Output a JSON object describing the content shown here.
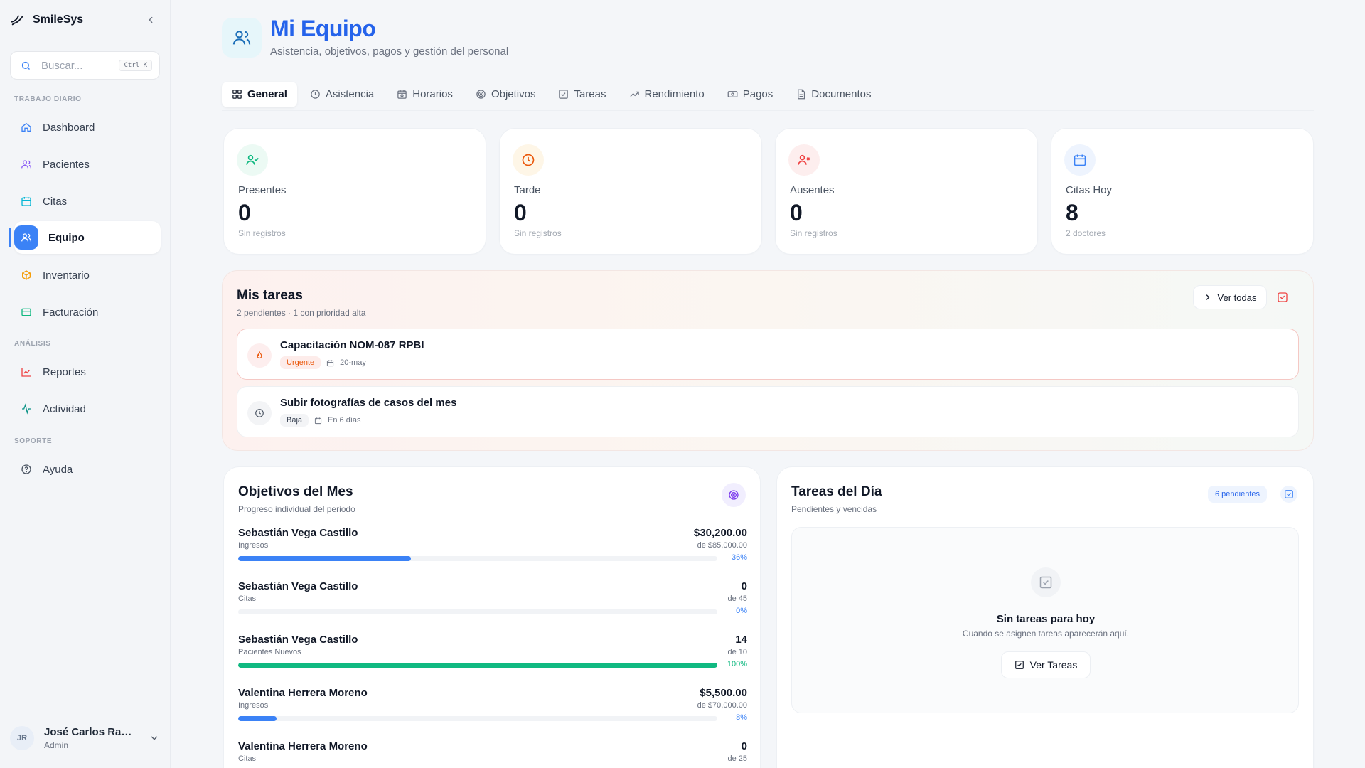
{
  "sidebar": {
    "brand": "SmileSys",
    "search_placeholder": "Buscar...",
    "search_shortcut": "Ctrl K",
    "sections": [
      {
        "label": "TRABAJO DIARIO"
      },
      {
        "label": "ANÁLISIS"
      },
      {
        "label": "SOPORTE"
      }
    ],
    "items": [
      {
        "label": "Dashboard",
        "icon": "home-icon"
      },
      {
        "label": "Pacientes",
        "icon": "users-icon"
      },
      {
        "label": "Citas",
        "icon": "calendar-icon"
      },
      {
        "label": "Equipo",
        "icon": "team-icon",
        "active": true
      },
      {
        "label": "Inventario",
        "icon": "box-icon"
      },
      {
        "label": "Facturación",
        "icon": "card-icon"
      },
      {
        "label": "Reportes",
        "icon": "chart-icon"
      },
      {
        "label": "Actividad",
        "icon": "activity-icon"
      },
      {
        "label": "Ayuda",
        "icon": "help-icon"
      }
    ],
    "user": {
      "initials": "JR",
      "name": "José Carlos Ramír...",
      "role": "Admin"
    }
  },
  "header": {
    "title": "Mi Equipo",
    "subtitle": "Asistencia, objetivos, pagos y gestión del personal"
  },
  "tabs": [
    {
      "label": "General",
      "active": true
    },
    {
      "label": "Asistencia"
    },
    {
      "label": "Horarios"
    },
    {
      "label": "Objetivos"
    },
    {
      "label": "Tareas"
    },
    {
      "label": "Rendimiento"
    },
    {
      "label": "Pagos"
    },
    {
      "label": "Documentos"
    }
  ],
  "stats": [
    {
      "label": "Presentes",
      "value": "0",
      "sub": "Sin registros",
      "color": "#10b981"
    },
    {
      "label": "Tarde",
      "value": "0",
      "sub": "Sin registros",
      "color": "#f59e0b"
    },
    {
      "label": "Ausentes",
      "value": "0",
      "sub": "Sin registros",
      "color": "#ef4444"
    },
    {
      "label": "Citas Hoy",
      "value": "8",
      "sub": "2 doctores",
      "color": "#3b82f6"
    }
  ],
  "my_tasks": {
    "title": "Mis tareas",
    "subtitle": "2 pendientes · 1 con prioridad alta",
    "see_all": "Ver todas",
    "items": [
      {
        "title": "Capacitación NOM-087 RPBI",
        "priority": "Urgente",
        "date": "20-may"
      },
      {
        "title": "Subir fotografías de casos del mes",
        "priority": "Baja",
        "date": "En 6 días"
      }
    ]
  },
  "goals": {
    "title": "Objetivos del Mes",
    "subtitle": "Progreso individual del periodo",
    "items": [
      {
        "name": "Sebastián Vega Castillo",
        "category": "Ingresos",
        "value": "$30,200.00",
        "target": "de $85,000.00",
        "percent": 36,
        "percent_label": "36%"
      },
      {
        "name": "Sebastián Vega Castillo",
        "category": "Citas",
        "value": "0",
        "target": "de 45",
        "percent": 0,
        "percent_label": "0%"
      },
      {
        "name": "Sebastián Vega Castillo",
        "category": "Pacientes Nuevos",
        "value": "14",
        "target": "de 10",
        "percent": 100,
        "percent_label": "100%"
      },
      {
        "name": "Valentina Herrera Moreno",
        "category": "Ingresos",
        "value": "$5,500.00",
        "target": "de $70,000.00",
        "percent": 8,
        "percent_label": "8%"
      },
      {
        "name": "Valentina Herrera Moreno",
        "category": "Citas",
        "value": "0",
        "target": "de 25",
        "percent": 0,
        "percent_label": ""
      }
    ]
  },
  "day_tasks": {
    "title": "Tareas del Día",
    "subtitle": "Pendientes y vencidas",
    "badge": "6 pendientes",
    "empty_title": "Sin tareas para hoy",
    "empty_sub": "Cuando se asignen tareas aparecerán aquí.",
    "button": "Ver Tareas"
  },
  "colors": {
    "accent": "#3b82f6",
    "success": "#10b981",
    "danger": "#ef4444",
    "warning": "#f59e0b"
  }
}
